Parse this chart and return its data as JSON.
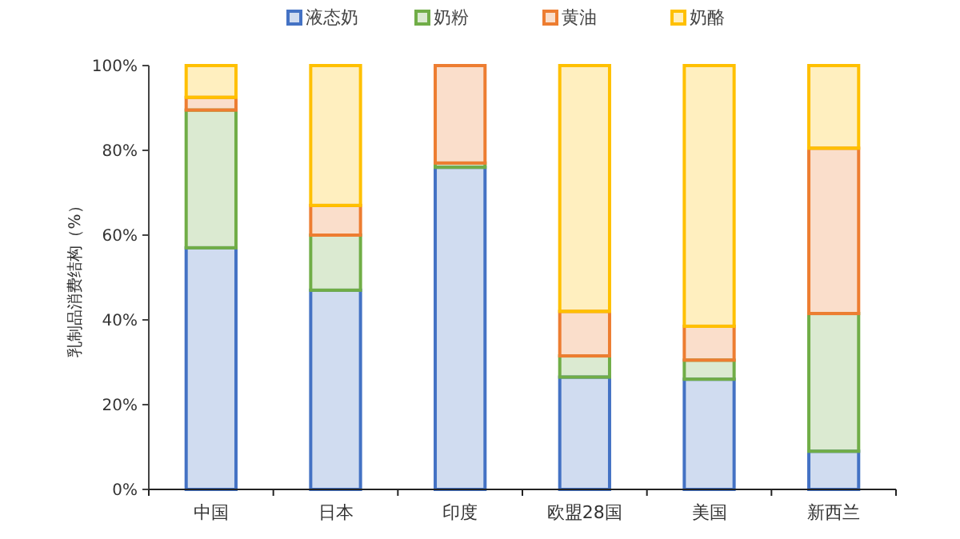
{
  "chart_data": {
    "type": "bar",
    "stacked": true,
    "ylabel": "乳制品消费结构（%）",
    "categories": [
      "中国",
      "日本",
      "印度",
      "欧盟28国",
      "美国",
      "新西兰"
    ],
    "series": [
      {
        "name": "液态奶",
        "color": "#4472c4",
        "values": [
          57,
          47,
          76,
          26.5,
          26,
          9
        ]
      },
      {
        "name": "奶粉",
        "color": "#70ad47",
        "values": [
          32.5,
          13,
          1,
          5,
          4.5,
          32.5
        ]
      },
      {
        "name": "黄油",
        "color": "#ed7d31",
        "values": [
          3,
          7,
          23,
          10.5,
          8,
          39
        ]
      },
      {
        "name": "奶酪",
        "color": "#ffc000",
        "values": [
          7.5,
          33,
          0,
          58,
          61.5,
          19.5
        ]
      }
    ],
    "ylim": [
      0,
      100
    ],
    "yticks": [
      {
        "value": 0,
        "label": "0%"
      },
      {
        "value": 20,
        "label": "20%"
      },
      {
        "value": 40,
        "label": "40%"
      },
      {
        "value": 60,
        "label": "60%"
      },
      {
        "value": 80,
        "label": "80%"
      },
      {
        "value": 100,
        "label": "100%"
      }
    ],
    "legend": "top",
    "grid": false
  }
}
